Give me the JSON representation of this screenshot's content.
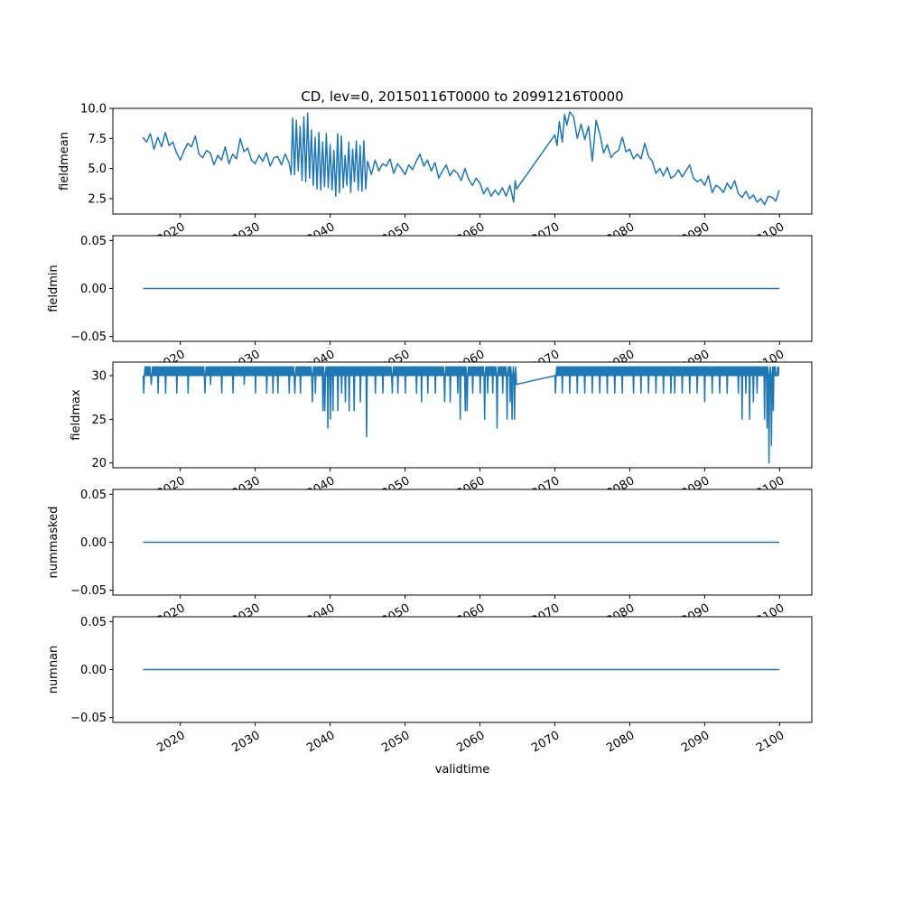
{
  "chart_data": {
    "type": "line",
    "title": "CD, lev=0, 20150116T0000 to 20991216T0000",
    "xlabel": "validtime",
    "x_ticks": [
      "2020",
      "2030",
      "2040",
      "2050",
      "2060",
      "2070",
      "2080",
      "2090",
      "2100"
    ],
    "x_tick_values": [
      2020,
      2030,
      2040,
      2050,
      2060,
      2070,
      2080,
      2090,
      2100
    ],
    "xlim": [
      2011,
      2104.3
    ],
    "line_color": "#1f77b4",
    "panels": [
      {
        "ylabel": "fieldmean",
        "ylim": [
          1.22,
          10.0
        ],
        "y_ticks": [
          "2.5",
          "5.0",
          "7.5",
          "10.0"
        ],
        "y_tick_values": [
          2.5,
          5.0,
          7.5,
          10.0
        ],
        "points": [
          [
            2015.0,
            7.6
          ],
          [
            2015.5,
            7.2
          ],
          [
            2016,
            7.9
          ],
          [
            2016.5,
            6.6
          ],
          [
            2017,
            7.6
          ],
          [
            2017.5,
            6.8
          ],
          [
            2018,
            8.0
          ],
          [
            2018.5,
            6.9
          ],
          [
            2019,
            7.2
          ],
          [
            2019.5,
            6.3
          ],
          [
            2020,
            5.7
          ],
          [
            2020.5,
            6.5
          ],
          [
            2021,
            7.1
          ],
          [
            2021.5,
            6.8
          ],
          [
            2022,
            7.7
          ],
          [
            2022.5,
            6.2
          ],
          [
            2023,
            5.9
          ],
          [
            2023.5,
            6.5
          ],
          [
            2024,
            6.3
          ],
          [
            2024.5,
            5.3
          ],
          [
            2025,
            6.1
          ],
          [
            2025.5,
            5.7
          ],
          [
            2026,
            6.8
          ],
          [
            2026.5,
            5.4
          ],
          [
            2027,
            6.2
          ],
          [
            2027.5,
            5.8
          ],
          [
            2028,
            7.5
          ],
          [
            2028.5,
            6.4
          ],
          [
            2029,
            6.7
          ],
          [
            2029.5,
            5.7
          ],
          [
            2030,
            5.4
          ],
          [
            2030.5,
            6.1
          ],
          [
            2031,
            5.6
          ],
          [
            2031.5,
            6.3
          ],
          [
            2032,
            5.2
          ],
          [
            2032.5,
            5.9
          ],
          [
            2033,
            6.0
          ],
          [
            2033.5,
            5.3
          ],
          [
            2034,
            6.2
          ],
          [
            2034.5,
            5.5
          ],
          [
            2034.8,
            4.5
          ],
          [
            2035.0,
            9.2
          ],
          [
            2035.25,
            4.5
          ],
          [
            2035.5,
            9.0
          ],
          [
            2035.75,
            4.8
          ],
          [
            2036,
            8.5
          ],
          [
            2036.25,
            4.0
          ],
          [
            2036.5,
            9.3
          ],
          [
            2036.75,
            3.9
          ],
          [
            2037,
            9.6
          ],
          [
            2037.25,
            4.2
          ],
          [
            2037.5,
            8.2
          ],
          [
            2037.75,
            3.6
          ],
          [
            2038,
            7.6
          ],
          [
            2038.25,
            3.3
          ],
          [
            2038.5,
            8.0
          ],
          [
            2038.75,
            3.2
          ],
          [
            2039,
            7.2
          ],
          [
            2039.25,
            3.5
          ],
          [
            2039.5,
            7.9
          ],
          [
            2039.75,
            3.4
          ],
          [
            2040,
            7.0
          ],
          [
            2040.25,
            3.2
          ],
          [
            2040.5,
            6.5
          ],
          [
            2040.75,
            2.7
          ],
          [
            2041,
            7.9
          ],
          [
            2041.25,
            3.0
          ],
          [
            2041.5,
            7.7
          ],
          [
            2041.75,
            3.4
          ],
          [
            2042,
            6.1
          ],
          [
            2042.25,
            3.6
          ],
          [
            2042.5,
            7.2
          ],
          [
            2042.75,
            3.0
          ],
          [
            2043,
            6.6
          ],
          [
            2043.25,
            3.9
          ],
          [
            2043.5,
            7.3
          ],
          [
            2043.75,
            3.2
          ],
          [
            2044,
            6.9
          ],
          [
            2044.25,
            3.1
          ],
          [
            2044.5,
            7.3
          ],
          [
            2044.75,
            3.3
          ],
          [
            2045,
            5.6
          ],
          [
            2045.5,
            4.5
          ],
          [
            2046,
            5.7
          ],
          [
            2046.5,
            4.8
          ],
          [
            2047,
            5.4
          ],
          [
            2047.5,
            5.2
          ],
          [
            2048,
            5.8
          ],
          [
            2048.5,
            4.6
          ],
          [
            2049,
            5.4
          ],
          [
            2049.5,
            5.0
          ],
          [
            2050,
            4.5
          ],
          [
            2050.5,
            5.3
          ],
          [
            2051,
            4.9
          ],
          [
            2051.5,
            5.6
          ],
          [
            2052,
            6.2
          ],
          [
            2052.5,
            5.2
          ],
          [
            2053,
            5.7
          ],
          [
            2053.5,
            4.8
          ],
          [
            2054,
            5.5
          ],
          [
            2054.5,
            4.2
          ],
          [
            2055,
            4.8
          ],
          [
            2055.5,
            5.3
          ],
          [
            2056,
            4.4
          ],
          [
            2056.5,
            4.9
          ],
          [
            2057,
            4.6
          ],
          [
            2057.5,
            4.0
          ],
          [
            2058,
            5.0
          ],
          [
            2058.5,
            4.1
          ],
          [
            2059,
            3.6
          ],
          [
            2059.5,
            4.2
          ],
          [
            2060,
            3.8
          ],
          [
            2060.5,
            2.9
          ],
          [
            2061,
            3.4
          ],
          [
            2061.5,
            2.7
          ],
          [
            2062,
            3.2
          ],
          [
            2062.5,
            2.8
          ],
          [
            2063,
            3.4
          ],
          [
            2063.5,
            2.7
          ],
          [
            2064,
            3.6
          ],
          [
            2064.5,
            2.2
          ],
          [
            2064.7,
            4.0
          ],
          [
            2064.9,
            3.3
          ],
          [
            2070,
            7.8
          ],
          [
            2070.3,
            6.9
          ],
          [
            2070.6,
            8.9
          ],
          [
            2071,
            7.2
          ],
          [
            2071.3,
            9.5
          ],
          [
            2071.6,
            8.6
          ],
          [
            2072,
            9.7
          ],
          [
            2072.5,
            9.3
          ],
          [
            2073,
            7.5
          ],
          [
            2073.5,
            8.7
          ],
          [
            2074,
            7.4
          ],
          [
            2074.5,
            8.5
          ],
          [
            2075,
            5.6
          ],
          [
            2075.5,
            9.0
          ],
          [
            2076,
            7.9
          ],
          [
            2076.5,
            6.3
          ],
          [
            2077,
            7.0
          ],
          [
            2077.5,
            5.9
          ],
          [
            2078,
            6.3
          ],
          [
            2078.5,
            6.5
          ],
          [
            2079,
            7.6
          ],
          [
            2079.5,
            6.4
          ],
          [
            2080,
            6.6
          ],
          [
            2080.5,
            5.8
          ],
          [
            2081,
            6.2
          ],
          [
            2081.5,
            5.8
          ],
          [
            2082,
            7.1
          ],
          [
            2082.5,
            6.0
          ],
          [
            2083,
            5.6
          ],
          [
            2083.5,
            4.6
          ],
          [
            2084,
            5.0
          ],
          [
            2084.5,
            4.4
          ],
          [
            2085,
            5.1
          ],
          [
            2085.5,
            4.2
          ],
          [
            2086,
            4.4
          ],
          [
            2086.5,
            4.9
          ],
          [
            2087,
            4.3
          ],
          [
            2087.5,
            4.8
          ],
          [
            2088,
            5.3
          ],
          [
            2088.5,
            4.2
          ],
          [
            2089,
            3.9
          ],
          [
            2089.5,
            4.1
          ],
          [
            2090,
            3.6
          ],
          [
            2090.5,
            4.4
          ],
          [
            2091,
            3.0
          ],
          [
            2091.5,
            3.6
          ],
          [
            2092,
            3.4
          ],
          [
            2092.5,
            3.0
          ],
          [
            2093,
            3.8
          ],
          [
            2093.5,
            3.3
          ],
          [
            2094,
            4.0
          ],
          [
            2094.5,
            2.9
          ],
          [
            2095,
            2.6
          ],
          [
            2095.5,
            3.1
          ],
          [
            2096,
            2.5
          ],
          [
            2096.5,
            2.8
          ],
          [
            2097,
            2.2
          ],
          [
            2097.5,
            2.5
          ],
          [
            2098,
            2.0
          ],
          [
            2098.5,
            2.7
          ],
          [
            2099,
            2.6
          ],
          [
            2099.5,
            2.3
          ],
          [
            2099.95,
            3.2
          ]
        ]
      },
      {
        "ylabel": "fieldmin",
        "ylim": [
          -0.055,
          0.055
        ],
        "y_ticks": [
          "−0.05",
          "0.00",
          "0.05"
        ],
        "y_tick_values": [
          -0.05,
          0.0,
          0.05
        ],
        "points": [
          [
            2015.04,
            0
          ],
          [
            2064.9,
            0
          ],
          [
            2070.0,
            0
          ],
          [
            2099.96,
            0
          ]
        ]
      },
      {
        "ylabel": "fieldmax",
        "ylim": [
          19.45,
          31.55
        ],
        "y_ticks": [
          "20",
          "25",
          "30"
        ],
        "y_tick_values": [
          20,
          25,
          30
        ],
        "baseline_alternating": [
          30,
          31
        ],
        "segments": [
          [
            2015.04,
            2064.9
          ],
          [
            2070.0,
            2099.96
          ]
        ],
        "dips": [
          [
            2015.1,
            28
          ],
          [
            2016.1,
            29
          ],
          [
            2017,
            28
          ],
          [
            2018,
            28
          ],
          [
            2019.5,
            28
          ],
          [
            2021,
            28
          ],
          [
            2023.3,
            28
          ],
          [
            2024,
            29
          ],
          [
            2025.5,
            28
          ],
          [
            2027,
            28
          ],
          [
            2028.5,
            29
          ],
          [
            2030,
            28
          ],
          [
            2031.5,
            28
          ],
          [
            2032.4,
            28
          ],
          [
            2033,
            28
          ],
          [
            2034.5,
            28
          ],
          [
            2035.3,
            28
          ],
          [
            2036,
            28
          ],
          [
            2037.6,
            27
          ],
          [
            2038,
            28
          ],
          [
            2039,
            26
          ],
          [
            2039.3,
            26
          ],
          [
            2039.7,
            24
          ],
          [
            2040,
            25
          ],
          [
            2040.4,
            26
          ],
          [
            2041,
            26
          ],
          [
            2041.5,
            28
          ],
          [
            2042,
            27
          ],
          [
            2042.5,
            26
          ],
          [
            2043.2,
            26
          ],
          [
            2044,
            27
          ],
          [
            2044.9,
            23
          ],
          [
            2046,
            28
          ],
          [
            2047,
            28
          ],
          [
            2048.3,
            28
          ],
          [
            2049,
            28
          ],
          [
            2050,
            28
          ],
          [
            2051.5,
            28
          ],
          [
            2052.2,
            27
          ],
          [
            2053,
            28
          ],
          [
            2054,
            28
          ],
          [
            2055.3,
            27
          ],
          [
            2056,
            27
          ],
          [
            2057,
            28
          ],
          [
            2057.4,
            25
          ],
          [
            2058,
            26
          ],
          [
            2058.3,
            26
          ],
          [
            2059,
            28
          ],
          [
            2060,
            28
          ],
          [
            2060.6,
            25
          ],
          [
            2061,
            28
          ],
          [
            2061.7,
            28
          ],
          [
            2062.3,
            24
          ],
          [
            2063,
            28
          ],
          [
            2063.6,
            25
          ],
          [
            2064,
            27
          ],
          [
            2064.3,
            25
          ],
          [
            2064.6,
            25
          ],
          [
            2064.9,
            29
          ],
          [
            2070.1,
            28
          ],
          [
            2071,
            28
          ],
          [
            2072,
            28
          ],
          [
            2073,
            28
          ],
          [
            2074,
            28
          ],
          [
            2075,
            28
          ],
          [
            2076,
            28
          ],
          [
            2077,
            28
          ],
          [
            2078,
            28
          ],
          [
            2079,
            28
          ],
          [
            2080.5,
            28
          ],
          [
            2081.5,
            28
          ],
          [
            2082.5,
            28
          ],
          [
            2083.5,
            28
          ],
          [
            2084.5,
            28
          ],
          [
            2085.5,
            28
          ],
          [
            2086,
            28
          ],
          [
            2087,
            28
          ],
          [
            2088,
            28
          ],
          [
            2089,
            28
          ],
          [
            2090,
            27
          ],
          [
            2091,
            28
          ],
          [
            2092,
            28
          ],
          [
            2093,
            28
          ],
          [
            2094.5,
            28
          ],
          [
            2095,
            25
          ],
          [
            2095.5,
            28
          ],
          [
            2096,
            25
          ],
          [
            2096.5,
            27
          ],
          [
            2097,
            28
          ],
          [
            2098,
            25
          ],
          [
            2098.3,
            24
          ],
          [
            2098.6,
            20
          ],
          [
            2098.9,
            22
          ],
          [
            2099.2,
            26
          ],
          [
            2099.6,
            30
          ]
        ]
      },
      {
        "ylabel": "nummasked",
        "ylim": [
          -0.055,
          0.055
        ],
        "y_ticks": [
          "−0.05",
          "0.00",
          "0.05"
        ],
        "y_tick_values": [
          -0.05,
          0.0,
          0.05
        ],
        "points": [
          [
            2015.04,
            0
          ],
          [
            2064.9,
            0
          ],
          [
            2070.0,
            0
          ],
          [
            2099.96,
            0
          ]
        ]
      },
      {
        "ylabel": "numnan",
        "ylim": [
          -0.055,
          0.055
        ],
        "y_ticks": [
          "−0.05",
          "0.00",
          "0.05"
        ],
        "y_tick_values": [
          -0.05,
          0.0,
          0.05
        ],
        "points": [
          [
            2015.04,
            0
          ],
          [
            2064.9,
            0
          ],
          [
            2070.0,
            0
          ],
          [
            2099.96,
            0
          ]
        ]
      }
    ]
  }
}
